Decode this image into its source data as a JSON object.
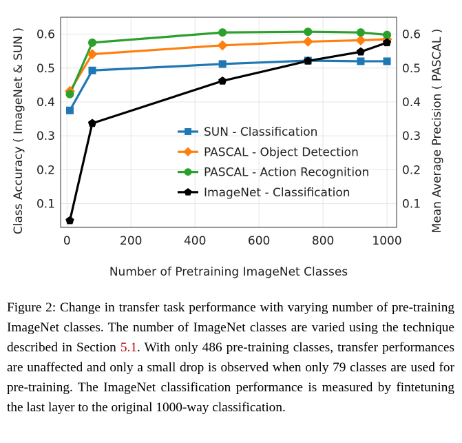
{
  "chart_data": {
    "type": "line",
    "xlabel": "Number of Pretraining ImageNet Classes",
    "ylabel_left": "Class Accuracy ( ImageNet & SUN )",
    "ylabel_right": "Mean Average Precision ( PASCAL )",
    "xlim": [
      -20,
      1030
    ],
    "ylim": [
      0.03,
      0.65
    ],
    "xticks": [
      0,
      200,
      400,
      600,
      800,
      1000
    ],
    "yticks": [
      0.1,
      0.2,
      0.3,
      0.4,
      0.5,
      0.6
    ],
    "grid": true,
    "legend_placement": "center-right",
    "series": [
      {
        "name": "SUN - Classification",
        "color": "#1f77b4",
        "marker": "square",
        "x": [
          9,
          79,
          486,
          753,
          918,
          1000
        ],
        "y": [
          0.375,
          0.493,
          0.512,
          0.522,
          0.52,
          0.52
        ]
      },
      {
        "name": "PASCAL - Object Detection",
        "color": "#ff7f0e",
        "marker": "diamond",
        "x": [
          9,
          79,
          486,
          753,
          918,
          1000
        ],
        "y": [
          0.432,
          0.541,
          0.567,
          0.578,
          0.582,
          0.585
        ]
      },
      {
        "name": "PASCAL - Action Recognition",
        "color": "#2ca02c",
        "marker": "circle",
        "x": [
          9,
          79,
          486,
          753,
          918,
          1000
        ],
        "y": [
          0.423,
          0.575,
          0.605,
          0.607,
          0.605,
          0.598
        ]
      },
      {
        "name": "ImageNet - Classification",
        "color": "#000000",
        "marker": "pentagon",
        "x": [
          9,
          79,
          486,
          753,
          918,
          1000
        ],
        "y": [
          0.05,
          0.337,
          0.462,
          0.521,
          0.548,
          0.575
        ]
      }
    ]
  },
  "caption": {
    "part1": "Figure 2: Change in transfer task performance with varying number of pre-training ImageNet classes. The number of ImageNet classes are varied using the technique described in Section ",
    "section_ref": "5.1",
    "part2": ". With only 486 pre-training classes, transfer performances are unaffected and only a small drop is observed when only 79 classes are used for pre-training. The ImageNet classification performance is measured by fintetuning the last layer to the original 1000-way classification."
  }
}
